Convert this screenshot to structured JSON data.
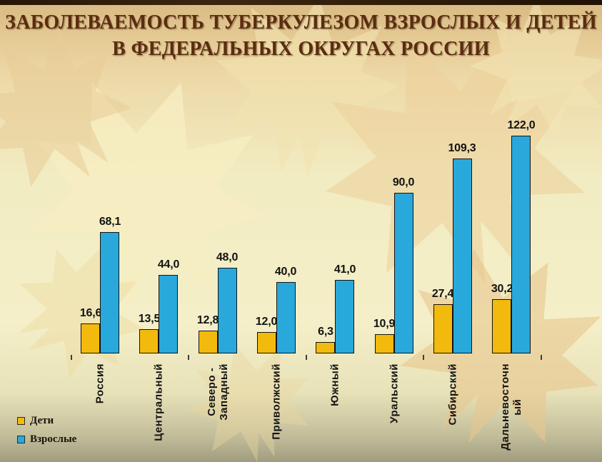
{
  "slide": {
    "title_line1": "ЗАБОЛЕВАЕМОСТЬ ТУБЕРКУЛЕЗОМ ВЗРОСЛЫХ И ДЕТЕЙ",
    "title_line2": "В ФЕДЕРАЛЬНЫХ ОКРУГАХ РОССИИ"
  },
  "legend": {
    "items": [
      {
        "label": "Дети",
        "color": "#F3BA0E"
      },
      {
        "label": "Взрослые",
        "color": "#29A8DC"
      }
    ]
  },
  "chart_data": {
    "type": "bar",
    "title": "ЗАБОЛЕВАЕМОСТЬ ТУБЕРКУЛЕЗОМ ВЗРОСЛЫХ И ДЕТЕЙ В ФЕДЕРАЛЬНЫХ ОКРУГАХ РОССИИ",
    "categories": [
      "Россия",
      "Центральный",
      "Северо -\nЗападный",
      "Приволжский",
      "Южный",
      "Уральский",
      "Сибирский",
      "Дальневосточн\nый"
    ],
    "series": [
      {
        "name": "Дети",
        "color": "#F3BA0E",
        "values": [
          16.6,
          13.5,
          12.8,
          12.0,
          6.3,
          10.9,
          27.4,
          30.2
        ],
        "labels": [
          "16,6",
          "13,5",
          "12,8",
          "12,0",
          "6,3",
          "10,9",
          "27,4",
          "30,2"
        ]
      },
      {
        "name": "Взрослые",
        "color": "#29A8DC",
        "values": [
          68.1,
          44.0,
          48.0,
          40.0,
          41.0,
          90.0,
          109.3,
          122.0
        ],
        "labels": [
          "68,1",
          "44,0",
          "48,0",
          "40,0",
          "41,0",
          "90,0",
          "109,3",
          "122,0"
        ]
      }
    ],
    "ylim": [
      0,
      130
    ],
    "grid": false,
    "axes_visible": false,
    "decimal_separator": ",",
    "value_labels_shown": true,
    "category_labels_rotation": -90,
    "legend_position": "bottom-left"
  },
  "colors": {
    "title_text": "#5B2C10",
    "bar_children": "#F3BA0E",
    "bar_adults": "#29A8DC",
    "bar_outline": "#141414",
    "label_text": "#121212",
    "top_border": "#2E1D0B"
  }
}
